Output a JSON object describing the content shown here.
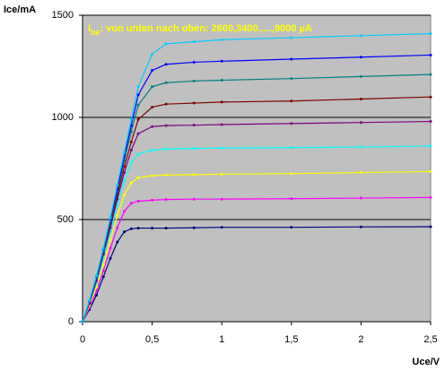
{
  "chart_data": {
    "type": "line",
    "ylabel": "Ice/mA",
    "xlabel": "Uce/V",
    "annotation": {
      "main": "I",
      "sub": "be",
      "text": ": von unten nach oben: 2600,3400,....,9000 µA"
    },
    "x": [
      0,
      0.05,
      0.1,
      0.15,
      0.2,
      0.25,
      0.3,
      0.35,
      0.4,
      0.5,
      0.6,
      0.8,
      1.0,
      1.5,
      2.0,
      2.5
    ],
    "series": [
      {
        "color": "#000080",
        "values": [
          0,
          60,
          130,
          220,
          310,
          390,
          440,
          455,
          458,
          458,
          458,
          460,
          462,
          462,
          464,
          465
        ]
      },
      {
        "color": "#ff00ff",
        "values": [
          0,
          70,
          150,
          250,
          360,
          460,
          540,
          580,
          590,
          595,
          598,
          600,
          600,
          602,
          605,
          608
        ]
      },
      {
        "color": "#ffff00",
        "values": [
          0,
          80,
          170,
          280,
          400,
          520,
          620,
          680,
          705,
          715,
          718,
          720,
          722,
          725,
          730,
          735
        ]
      },
      {
        "color": "#00ffff",
        "values": [
          0,
          90,
          190,
          310,
          440,
          570,
          690,
          780,
          820,
          840,
          845,
          848,
          850,
          852,
          855,
          860
        ]
      },
      {
        "color": "#800080",
        "values": [
          0,
          90,
          200,
          330,
          460,
          600,
          730,
          840,
          920,
          955,
          960,
          962,
          965,
          970,
          975,
          980
        ]
      },
      {
        "color": "#800000",
        "values": [
          0,
          95,
          210,
          340,
          480,
          620,
          760,
          880,
          990,
          1050,
          1065,
          1070,
          1075,
          1080,
          1090,
          1100
        ]
      },
      {
        "color": "#008080",
        "values": [
          0,
          100,
          215,
          350,
          490,
          640,
          790,
          930,
          1060,
          1150,
          1170,
          1178,
          1182,
          1190,
          1200,
          1210
        ]
      },
      {
        "color": "#0000ff",
        "values": [
          0,
          100,
          220,
          355,
          500,
          650,
          810,
          960,
          1110,
          1230,
          1260,
          1270,
          1275,
          1285,
          1295,
          1305
        ]
      },
      {
        "color": "#00ccff",
        "values": [
          0,
          105,
          225,
          360,
          510,
          670,
          830,
          990,
          1150,
          1310,
          1360,
          1370,
          1380,
          1390,
          1400,
          1410
        ]
      }
    ],
    "xlim": [
      0,
      2.5
    ],
    "xticks": [
      0,
      {
        "value": 0.5,
        "label": "0,5"
      },
      1,
      {
        "value": 1.5,
        "label": "1,5"
      },
      2,
      {
        "value": 2.5,
        "label": "2,5"
      }
    ],
    "ylim": [
      0,
      1500
    ],
    "yticks": [
      0,
      500,
      1000,
      1500
    ],
    "grid": true
  }
}
